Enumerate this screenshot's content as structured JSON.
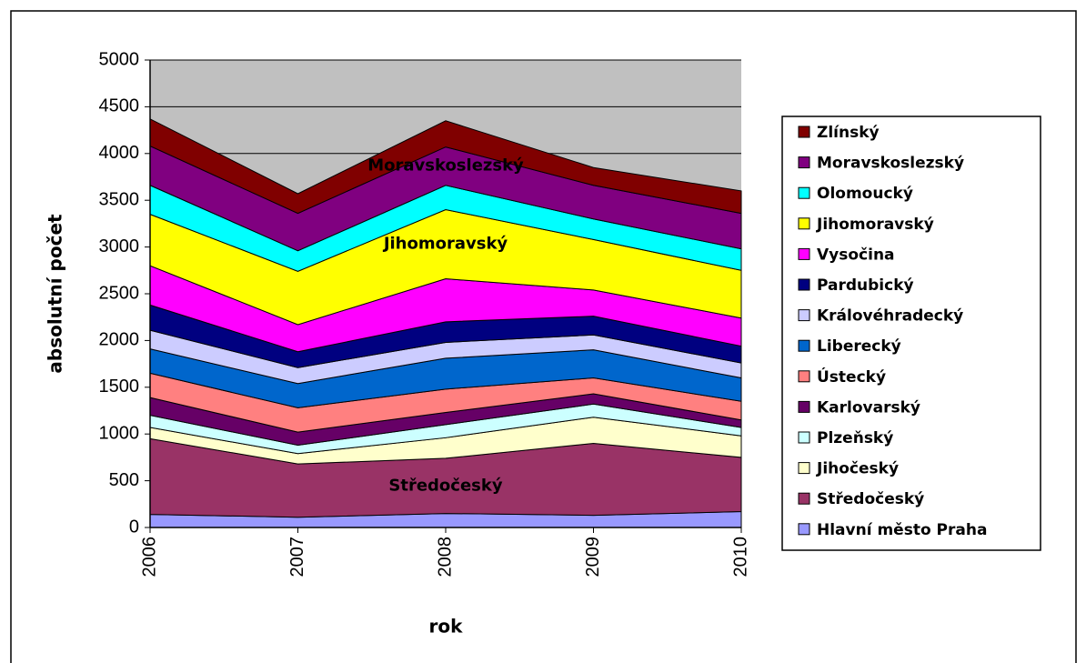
{
  "chart_data": {
    "type": "stacked_area",
    "x_label": "rok",
    "y_label": "absolutní  počet",
    "categories": [
      "2006",
      "2007",
      "2008",
      "2009",
      "2010"
    ],
    "ylim": [
      0,
      5000
    ],
    "yticks": [
      0,
      500,
      1000,
      1500,
      2000,
      2500,
      3000,
      3500,
      4000,
      4500,
      5000
    ],
    "grid": true,
    "background": "#c0c0c0",
    "legend": "right",
    "annotations": [
      "Moravskoslezský",
      "Jihomoravský",
      "Středočeský"
    ],
    "series": [
      {
        "name": "Hlavní město Praha",
        "color": "#9999ff",
        "values": [
          140,
          110,
          150,
          130,
          170
        ]
      },
      {
        "name": "Středočeský",
        "color": "#993366",
        "values": [
          810,
          570,
          590,
          770,
          580
        ]
      },
      {
        "name": "Jihočeský",
        "color": "#ffffcc",
        "values": [
          120,
          110,
          220,
          280,
          230
        ]
      },
      {
        "name": "Plzeňský",
        "color": "#ccffff",
        "values": [
          130,
          90,
          140,
          140,
          90
        ]
      },
      {
        "name": "Karlovarský",
        "color": "#660066",
        "values": [
          190,
          140,
          130,
          110,
          80
        ]
      },
      {
        "name": "Ústecký",
        "color": "#ff8080",
        "values": [
          260,
          260,
          250,
          170,
          200
        ]
      },
      {
        "name": "Liberecký",
        "color": "#0066cc",
        "values": [
          260,
          260,
          330,
          300,
          250
        ]
      },
      {
        "name": "Královéhradecký",
        "color": "#ccccff",
        "values": [
          200,
          170,
          170,
          160,
          160
        ]
      },
      {
        "name": "Pardubický",
        "color": "#000080",
        "values": [
          270,
          170,
          220,
          200,
          180
        ]
      },
      {
        "name": "Vysočina",
        "color": "#ff00ff",
        "values": [
          420,
          290,
          460,
          280,
          300
        ]
      },
      {
        "name": "Jihomoravský",
        "color": "#ffff00",
        "values": [
          550,
          570,
          740,
          540,
          510
        ]
      },
      {
        "name": "Olomoucký",
        "color": "#00ffff",
        "values": [
          310,
          220,
          260,
          220,
          230
        ]
      },
      {
        "name": "Moravskoslezský",
        "color": "#800080",
        "values": [
          420,
          400,
          410,
          360,
          380
        ]
      },
      {
        "name": "Zlínský",
        "color": "#800000",
        "values": [
          290,
          210,
          280,
          190,
          240
        ]
      }
    ]
  }
}
